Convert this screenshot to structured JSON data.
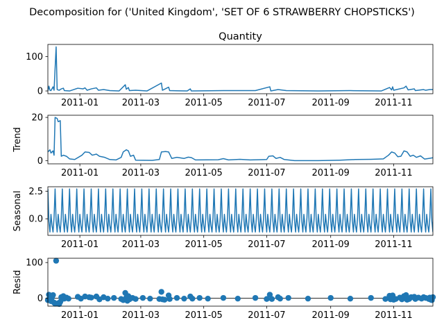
{
  "figure": {
    "suptitle": "Decomposition for ('United Kingdom', 'SET OF 6 STRAWBERRY CHOPSTICKS')"
  },
  "chart_data": [
    {
      "type": "line",
      "name": "observed",
      "title": "Quantity",
      "ylabel": "",
      "xlim": [
        "2010-12-01",
        "2011-12-09"
      ],
      "ylim": [
        -8,
        135
      ],
      "yticks": [
        0,
        100
      ],
      "xticks": [
        "2011-01",
        "2011-03",
        "2011-05",
        "2011-07",
        "2011-09",
        "2011-11"
      ],
      "color": "#1f77b4",
      "points": [
        [
          "2010-12-01",
          0
        ],
        [
          "2010-12-02",
          14
        ],
        [
          "2010-12-03",
          2
        ],
        [
          "2010-12-04",
          1
        ],
        [
          "2010-12-06",
          12
        ],
        [
          "2010-12-07",
          2
        ],
        [
          "2010-12-09",
          128
        ],
        [
          "2010-12-10",
          4
        ],
        [
          "2010-12-12",
          2
        ],
        [
          "2010-12-14",
          6
        ],
        [
          "2010-12-16",
          8
        ],
        [
          "2010-12-17",
          1
        ],
        [
          "2010-12-22",
          0
        ],
        [
          "2010-12-30",
          8
        ],
        [
          "2011-01-04",
          6
        ],
        [
          "2011-01-06",
          9
        ],
        [
          "2011-01-08",
          2
        ],
        [
          "2011-01-12",
          6
        ],
        [
          "2011-01-17",
          9
        ],
        [
          "2011-01-19",
          2
        ],
        [
          "2011-01-24",
          4
        ],
        [
          "2011-01-30",
          1
        ],
        [
          "2011-02-08",
          0
        ],
        [
          "2011-02-14",
          18
        ],
        [
          "2011-02-15",
          5
        ],
        [
          "2011-02-17",
          10
        ],
        [
          "2011-02-18",
          1
        ],
        [
          "2011-02-24",
          2
        ],
        [
          "2011-03-07",
          0
        ],
        [
          "2011-03-21",
          23
        ],
        [
          "2011-03-22",
          2
        ],
        [
          "2011-03-28",
          11
        ],
        [
          "2011-03-29",
          1
        ],
        [
          "2011-04-15",
          0
        ],
        [
          "2011-04-18",
          6
        ],
        [
          "2011-04-19",
          0
        ],
        [
          "2011-05-20",
          1
        ],
        [
          "2011-06-20",
          1
        ],
        [
          "2011-07-04",
          12
        ],
        [
          "2011-07-05",
          0
        ],
        [
          "2011-07-12",
          4
        ],
        [
          "2011-07-20",
          1
        ],
        [
          "2011-08-20",
          0
        ],
        [
          "2011-09-20",
          1
        ],
        [
          "2011-10-20",
          0
        ],
        [
          "2011-10-28",
          10
        ],
        [
          "2011-10-30",
          3
        ],
        [
          "2011-10-31",
          12
        ],
        [
          "2011-11-01",
          2
        ],
        [
          "2011-11-11",
          9
        ],
        [
          "2011-11-13",
          14
        ],
        [
          "2011-11-15",
          3
        ],
        [
          "2011-11-21",
          6
        ],
        [
          "2011-11-22",
          1
        ],
        [
          "2011-11-30",
          4
        ],
        [
          "2011-12-02",
          2
        ],
        [
          "2011-12-06",
          4
        ],
        [
          "2011-12-09",
          4
        ]
      ]
    },
    {
      "type": "line",
      "name": "trend",
      "title": "",
      "ylabel": "Trend",
      "xlim": [
        "2010-12-01",
        "2011-12-09"
      ],
      "ylim": [
        -1.5,
        21
      ],
      "yticks": [
        0,
        20
      ],
      "xticks": [
        "2011-01",
        "2011-03",
        "2011-05",
        "2011-07",
        "2011-09",
        "2011-11"
      ],
      "color": "#1f77b4",
      "points": [
        [
          "2010-12-01",
          4
        ],
        [
          "2010-12-03",
          5
        ],
        [
          "2010-12-04",
          3.5
        ],
        [
          "2010-12-06",
          4.5
        ],
        [
          "2010-12-07",
          2.5
        ],
        [
          "2010-12-08",
          20
        ],
        [
          "2010-12-10",
          19.5
        ],
        [
          "2010-12-11",
          18
        ],
        [
          "2010-12-13",
          18.5
        ],
        [
          "2010-12-14",
          2
        ],
        [
          "2010-12-16",
          2.5
        ],
        [
          "2010-12-19",
          2
        ],
        [
          "2010-12-22",
          0.8
        ],
        [
          "2010-12-27",
          0.5
        ],
        [
          "2011-01-03",
          2.5
        ],
        [
          "2011-01-06",
          4
        ],
        [
          "2011-01-10",
          3.8
        ],
        [
          "2011-01-13",
          2.5
        ],
        [
          "2011-01-17",
          3
        ],
        [
          "2011-01-20",
          2
        ],
        [
          "2011-01-25",
          1.5
        ],
        [
          "2011-01-30",
          0.5
        ],
        [
          "2011-02-05",
          0.3
        ],
        [
          "2011-02-10",
          1.5
        ],
        [
          "2011-02-12",
          4
        ],
        [
          "2011-02-15",
          5
        ],
        [
          "2011-02-17",
          4.5
        ],
        [
          "2011-02-19",
          2
        ],
        [
          "2011-02-22",
          2.5
        ],
        [
          "2011-02-24",
          0.2
        ],
        [
          "2011-03-12",
          0.1
        ],
        [
          "2011-03-19",
          0.5
        ],
        [
          "2011-03-21",
          4
        ],
        [
          "2011-03-25",
          4.2
        ],
        [
          "2011-03-28",
          4
        ],
        [
          "2011-03-31",
          1
        ],
        [
          "2011-04-05",
          1.5
        ],
        [
          "2011-04-12",
          1
        ],
        [
          "2011-04-16",
          1.6
        ],
        [
          "2011-04-19",
          1.4
        ],
        [
          "2011-04-23",
          0.3
        ],
        [
          "2011-05-15",
          0.4
        ],
        [
          "2011-05-20",
          0.9
        ],
        [
          "2011-05-25",
          0.3
        ],
        [
          "2011-06-05",
          0.6
        ],
        [
          "2011-06-15",
          0.3
        ],
        [
          "2011-07-01",
          0.5
        ],
        [
          "2011-07-03",
          2
        ],
        [
          "2011-07-07",
          2.2
        ],
        [
          "2011-07-10",
          1
        ],
        [
          "2011-07-14",
          1.5
        ],
        [
          "2011-07-18",
          0.5
        ],
        [
          "2011-07-28",
          0
        ],
        [
          "2011-08-20",
          0
        ],
        [
          "2011-09-10",
          0.2
        ],
        [
          "2011-09-25",
          0.5
        ],
        [
          "2011-10-10",
          0.6
        ],
        [
          "2011-10-22",
          0.8
        ],
        [
          "2011-10-27",
          2.5
        ],
        [
          "2011-10-30",
          4
        ],
        [
          "2011-11-02",
          3.5
        ],
        [
          "2011-11-05",
          1.8
        ],
        [
          "2011-11-08",
          2
        ],
        [
          "2011-11-11",
          4.5
        ],
        [
          "2011-11-14",
          4
        ],
        [
          "2011-11-17",
          2
        ],
        [
          "2011-11-20",
          2.5
        ],
        [
          "2011-11-23",
          1.5
        ],
        [
          "2011-11-27",
          2.2
        ],
        [
          "2011-12-01",
          0.7
        ],
        [
          "2011-12-05",
          1
        ],
        [
          "2011-12-09",
          1.3
        ]
      ]
    },
    {
      "type": "line",
      "name": "seasonal",
      "title": "",
      "ylabel": "Seasonal",
      "xlim": [
        "2010-12-01",
        "2011-12-09"
      ],
      "ylim": [
        -1.5,
        2.9
      ],
      "yticks": [
        0,
        2.5
      ],
      "ytick_labels": [
        "0.0",
        "2.5"
      ],
      "xticks": [
        "2011-01",
        "2011-03",
        "2011-05",
        "2011-07",
        "2011-09",
        "2011-11"
      ],
      "color": "#1f77b4",
      "period_days": 7,
      "cycle_values": [
        2.7,
        -0.2,
        -1.2,
        0.4,
        -0.6,
        -1.2,
        0.1
      ]
    },
    {
      "type": "scatter",
      "name": "resid",
      "title": "",
      "ylabel": "Resid",
      "xlim": [
        "2010-12-01",
        "2011-12-09"
      ],
      "ylim": [
        -22,
        112
      ],
      "yticks": [
        0,
        100
      ],
      "xticks": [
        "2011-01",
        "2011-03",
        "2011-05",
        "2011-07",
        "2011-09",
        "2011-11"
      ],
      "color": "#1f77b4",
      "baseline": 0,
      "points": [
        [
          "2010-12-01",
          -5
        ],
        [
          "2010-12-02",
          10
        ],
        [
          "2010-12-03",
          -3
        ],
        [
          "2010-12-04",
          -8
        ],
        [
          "2010-12-05",
          2
        ],
        [
          "2010-12-06",
          9
        ],
        [
          "2010-12-07",
          -12
        ],
        [
          "2010-12-08",
          -15
        ],
        [
          "2010-12-09",
          105
        ],
        [
          "2010-12-10",
          -15
        ],
        [
          "2010-12-11",
          -14
        ],
        [
          "2010-12-12",
          -16
        ],
        [
          "2010-12-13",
          -10
        ],
        [
          "2010-12-14",
          3
        ],
        [
          "2010-12-15",
          -2
        ],
        [
          "2010-12-16",
          6
        ],
        [
          "2010-12-17",
          -1
        ],
        [
          "2010-12-19",
          2
        ],
        [
          "2010-12-21",
          -1
        ],
        [
          "2010-12-30",
          4
        ],
        [
          "2011-01-02",
          -1
        ],
        [
          "2011-01-06",
          5
        ],
        [
          "2011-01-10",
          3
        ],
        [
          "2011-01-12",
          2
        ],
        [
          "2011-01-17",
          5
        ],
        [
          "2011-01-20",
          -3
        ],
        [
          "2011-01-24",
          3
        ],
        [
          "2011-01-28",
          -1
        ],
        [
          "2011-02-03",
          1
        ],
        [
          "2011-02-10",
          -2
        ],
        [
          "2011-02-12",
          -5
        ],
        [
          "2011-02-14",
          15
        ],
        [
          "2011-02-15",
          2
        ],
        [
          "2011-02-16",
          -7
        ],
        [
          "2011-02-17",
          6
        ],
        [
          "2011-02-18",
          -3
        ],
        [
          "2011-02-21",
          1
        ],
        [
          "2011-02-24",
          -2
        ],
        [
          "2011-03-03",
          1
        ],
        [
          "2011-03-10",
          -1
        ],
        [
          "2011-03-19",
          -2
        ],
        [
          "2011-03-21",
          18
        ],
        [
          "2011-03-22",
          -3
        ],
        [
          "2011-03-24",
          -4
        ],
        [
          "2011-03-28",
          8
        ],
        [
          "2011-03-29",
          -2
        ],
        [
          "2011-04-05",
          1
        ],
        [
          "2011-04-12",
          -1
        ],
        [
          "2011-04-18",
          5
        ],
        [
          "2011-04-20",
          -1
        ],
        [
          "2011-04-27",
          1
        ],
        [
          "2011-05-05",
          -1
        ],
        [
          "2011-05-20",
          1
        ],
        [
          "2011-06-03",
          -1
        ],
        [
          "2011-06-20",
          1
        ],
        [
          "2011-07-01",
          -2
        ],
        [
          "2011-07-04",
          10
        ],
        [
          "2011-07-06",
          -2
        ],
        [
          "2011-07-12",
          3
        ],
        [
          "2011-07-14",
          -1
        ],
        [
          "2011-07-22",
          1
        ],
        [
          "2011-08-10",
          -1
        ],
        [
          "2011-09-01",
          1
        ],
        [
          "2011-09-20",
          -1
        ],
        [
          "2011-10-10",
          1
        ],
        [
          "2011-10-24",
          -2
        ],
        [
          "2011-10-28",
          7
        ],
        [
          "2011-10-29",
          -3
        ],
        [
          "2011-10-31",
          8
        ],
        [
          "2011-11-01",
          -4
        ],
        [
          "2011-11-03",
          -2
        ],
        [
          "2011-11-07",
          2
        ],
        [
          "2011-11-09",
          -3
        ],
        [
          "2011-11-11",
          6
        ],
        [
          "2011-11-13",
          9
        ],
        [
          "2011-11-14",
          -4
        ],
        [
          "2011-11-16",
          -2
        ],
        [
          "2011-11-18",
          3
        ],
        [
          "2011-11-21",
          4
        ],
        [
          "2011-11-22",
          -2
        ],
        [
          "2011-11-25",
          2
        ],
        [
          "2011-11-28",
          -1
        ],
        [
          "2011-11-30",
          3
        ],
        [
          "2011-12-02",
          1
        ],
        [
          "2011-12-05",
          -2
        ],
        [
          "2011-12-06",
          2
        ],
        [
          "2011-12-07",
          -4
        ],
        [
          "2011-12-08",
          -5
        ],
        [
          "2011-12-09",
          3
        ]
      ]
    }
  ]
}
